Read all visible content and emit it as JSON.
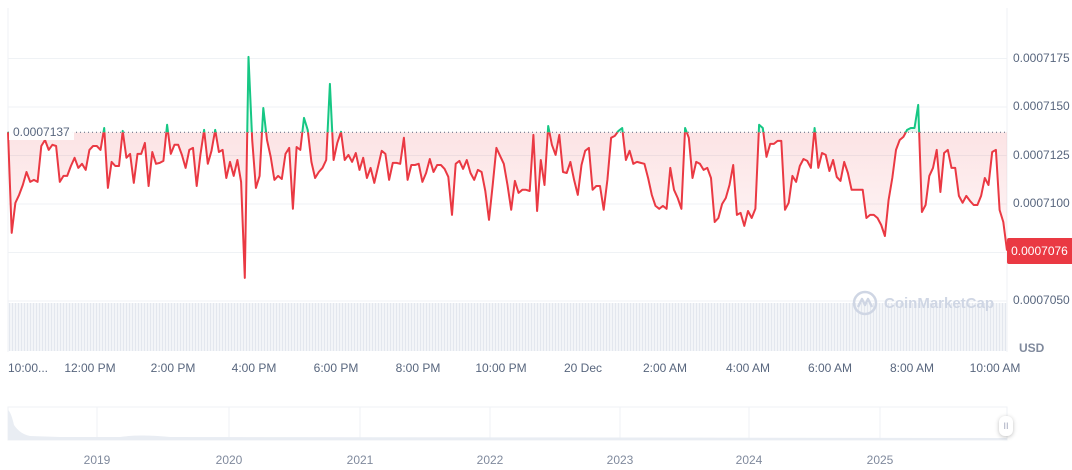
{
  "chart_data": {
    "type": "line",
    "title": "",
    "currency": "USD",
    "value_scale": 1e-07,
    "baseline": 7137,
    "baseline_label": "0.0007137",
    "current_price_label": "0.0007076",
    "ylim": [
      7040,
      7200
    ],
    "yticks": [
      7050,
      7100,
      7125,
      7150,
      7175
    ],
    "ytick_labels": [
      "0.0007050",
      "0.0007100",
      "0.0007125",
      "0.0007150",
      "0.0007175"
    ],
    "ytick_values_all": [
      7050,
      7075,
      7100,
      7125,
      7150,
      7175
    ],
    "xtick_labels": [
      "10:00...",
      "12:00 PM",
      "2:00 PM",
      "4:00 PM",
      "6:00 PM",
      "8:00 PM",
      "10:00 PM",
      "20 Dec",
      "2:00 AM",
      "4:00 AM",
      "6:00 AM",
      "8:00 AM",
      "10:00 AM"
    ],
    "x_span_hours": 24,
    "colors": {
      "up": "#16c784",
      "down": "#ea3943",
      "grid": "#eff2f5"
    },
    "values": [
      7137.2,
      7085.1,
      7100.6,
      7104.7,
      7109.8,
      7116.5,
      7111.4,
      7112.4,
      7111.4,
      7129.9,
      7133.0,
      7127.9,
      7130.5,
      7129.9,
      7111.4,
      7114.5,
      7114.5,
      7119.6,
      7123.8,
      7118.6,
      7120.7,
      7117.6,
      7127.9,
      7129.9,
      7129.9,
      7127.9,
      7139.2,
      7108.3,
      7121.7,
      7119.6,
      7119.6,
      7137.7,
      7123.8,
      7125.8,
      7110.9,
      7125.8,
      7125.8,
      7131.5,
      7109.3,
      7126.8,
      7120.7,
      7121.2,
      7122.2,
      7140.8,
      7125.8,
      7130.5,
      7130.5,
      7125.3,
      7118.6,
      7127.9,
      7128.9,
      7109.3,
      7125.3,
      7138.2,
      7120.7,
      7127.4,
      7138.2,
      7126.8,
      7127.9,
      7113.4,
      7121.7,
      7114.5,
      7122.7,
      7111.4,
      7061.9,
      7175.8,
      7133.0,
      7108.3,
      7114.5,
      7149.5,
      7133.0,
      7124.3,
      7112.4,
      7114.5,
      7112.9,
      7125.8,
      7128.9,
      7097.5,
      7129.4,
      7127.9,
      7144.4,
      7138.2,
      7121.7,
      7113.4,
      7116.5,
      7118.6,
      7122.7,
      7161.9,
      7122.7,
      7131.5,
      7137.2,
      7122.7,
      7125.3,
      7121.7,
      7126.3,
      7117.6,
      7123.8,
      7113.4,
      7118.6,
      7110.9,
      7119.1,
      7127.4,
      7125.8,
      7112.4,
      7121.2,
      7121.2,
      7120.7,
      7134.1,
      7112.4,
      7120.1,
      7120.1,
      7120.7,
      7111.4,
      7116.0,
      7123.2,
      7116.5,
      7120.1,
      7120.1,
      7118.1,
      7114.0,
      7094.4,
      7120.7,
      7122.2,
      7118.1,
      7122.7,
      7116.0,
      7112.4,
      7117.6,
      7116.5,
      7106.7,
      7091.8,
      7109.8,
      7128.9,
      7124.8,
      7120.7,
      7109.8,
      7097.0,
      7111.9,
      7105.7,
      7107.3,
      7107.3,
      7106.7,
      7135.6,
      7096.4,
      7122.7,
      7109.8,
      7140.2,
      7130.5,
      7125.3,
      7135.6,
      7116.5,
      7116.0,
      7121.7,
      7112.4,
      7104.7,
      7120.1,
      7127.4,
      7128.9,
      7107.3,
      7109.3,
      7109.3,
      7097.0,
      7112.4,
      7134.1,
      7135.1,
      7137.7,
      7139.2,
      7122.7,
      7127.4,
      7120.7,
      7121.7,
      7121.2,
      7120.7,
      7113.4,
      7104.7,
      7099.0,
      7097.5,
      7099.0,
      7097.5,
      7118.6,
      7107.3,
      7103.1,
      7097.5,
      7139.2,
      7134.1,
      7113.4,
      7121.7,
      7120.7,
      7117.6,
      7118.6,
      7113.4,
      7090.7,
      7092.8,
      7100.0,
      7103.1,
      7109.8,
      7120.1,
      7094.4,
      7095.4,
      7088.7,
      7096.4,
      7092.8,
      7097.5,
      7140.8,
      7139.2,
      7124.3,
      7131.0,
      7131.0,
      7132.5,
      7132.5,
      7097.0,
      7100.6,
      7114.5,
      7111.4,
      7119.6,
      7123.2,
      7122.2,
      7118.6,
      7139.2,
      7118.6,
      7126.3,
      7125.3,
      7117.0,
      7122.7,
      7113.9,
      7111.9,
      7121.7,
      7116.0,
      7107.3,
      7107.3,
      7107.3,
      7107.3,
      7092.8,
      7094.4,
      7094.4,
      7092.8,
      7089.2,
      7083.5,
      7102.1,
      7113.4,
      7127.9,
      7133.0,
      7134.6,
      7138.2,
      7139.2,
      7139.2,
      7151.1,
      7095.9,
      7099.5,
      7114.5,
      7118.6,
      7127.9,
      7106.2,
      7126.3,
      7127.9,
      7118.6,
      7118.6,
      7104.2,
      7100.6,
      7104.2,
      7101.6,
      7099.5,
      7099.5,
      7104.2,
      7113.4,
      7109.8,
      7126.8,
      7127.9,
      7096.9,
      7090.7,
      7076.0
    ]
  },
  "navigator": {
    "years": [
      "2019",
      "2020",
      "2021",
      "2022",
      "2023",
      "2024",
      "2025"
    ],
    "handle_glyph": "II"
  },
  "watermark": "CoinMarketCap"
}
